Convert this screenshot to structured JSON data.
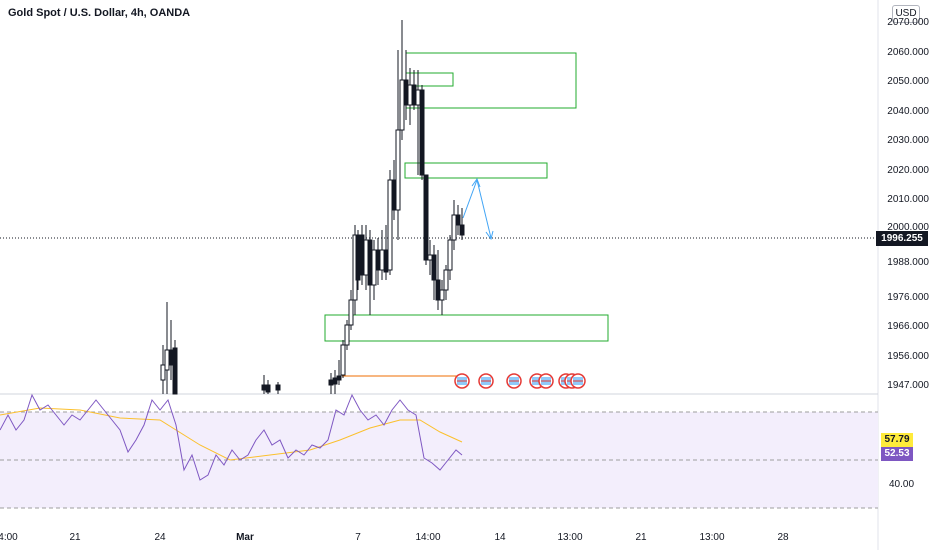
{
  "header": {
    "title": "Gold Spot / U.S. Dollar, 4h, OANDA",
    "currency_button": "USD"
  },
  "price_axis": {
    "labels": [
      "2070.000",
      "2060.000",
      "2050.000",
      "2040.000",
      "2030.000",
      "2020.000",
      "2010.000",
      "2000.000",
      "1988.000",
      "1976.000",
      "1966.000",
      "1956.000",
      "1947.000"
    ],
    "current_price": "1996.255"
  },
  "rsi_panel": {
    "ma_value": "57.79",
    "rsi_value": "52.53",
    "level_label": "40.00"
  },
  "time_axis": {
    "labels": [
      "4:00",
      "21",
      "24",
      "Mar",
      "7",
      "14:00",
      "14",
      "13:00",
      "21",
      "13:00",
      "28"
    ]
  },
  "colors": {
    "zone_border": "#22ab2e",
    "arrow": "#42a5f5",
    "rsi_line": "#7e57c2",
    "rsi_ma": "#fbc02d",
    "rsi_band": "#f3eefc",
    "current_tag": "#131722",
    "event_flag": "#e53935"
  },
  "icons": {
    "event_markers": [
      "us-flag-icon",
      "us-flag-icon",
      "us-flag-icon",
      "us-flag-icon",
      "us-flag-icon",
      "us-flag-icon",
      "us-flag-icon",
      "us-flag-icon"
    ]
  }
}
